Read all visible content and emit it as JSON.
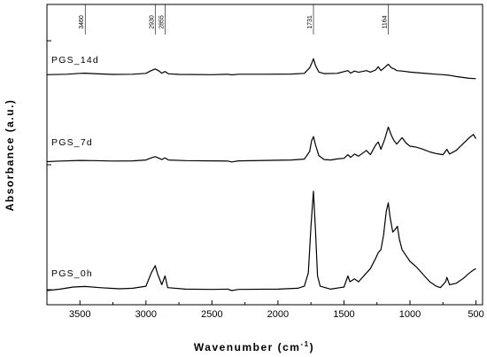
{
  "chart_data": {
    "type": "line",
    "xlabel": "Wavenumber (cm",
    "xlabel_sup": "-1",
    "xlabel_close": ")",
    "ylabel": "Absorbance (a.u.)",
    "xlim": [
      3750,
      450
    ],
    "x_reversed": true,
    "x_ticks": [
      3500,
      3000,
      2500,
      2000,
      1500,
      1000,
      500
    ],
    "y_ticks_shown_without_labels": 3,
    "grid": false,
    "legend": "none",
    "peak_markers": [
      "3460",
      "2930",
      "2855",
      "1731",
      "1164"
    ],
    "series": [
      {
        "name": "PGS_14d",
        "baseline": 0.0,
        "points": [
          [
            3750,
            0.03
          ],
          [
            3600,
            0.05
          ],
          [
            3500,
            0.09
          ],
          [
            3460,
            0.1
          ],
          [
            3400,
            0.08
          ],
          [
            3250,
            0.04
          ],
          [
            3100,
            0.05
          ],
          [
            3000,
            0.09
          ],
          [
            2960,
            0.22
          ],
          [
            2930,
            0.3
          ],
          [
            2900,
            0.2
          ],
          [
            2880,
            0.1
          ],
          [
            2855,
            0.18
          ],
          [
            2830,
            0.07
          ],
          [
            2750,
            0.04
          ],
          [
            2500,
            0.03
          ],
          [
            2380,
            0.05
          ],
          [
            2350,
            0.02
          ],
          [
            2300,
            0.05
          ],
          [
            2100,
            0.05
          ],
          [
            1900,
            0.06
          ],
          [
            1800,
            0.09
          ],
          [
            1760,
            0.35
          ],
          [
            1745,
            0.55
          ],
          [
            1731,
            0.78
          ],
          [
            1715,
            0.45
          ],
          [
            1690,
            0.15
          ],
          [
            1650,
            0.08
          ],
          [
            1550,
            0.09
          ],
          [
            1470,
            0.22
          ],
          [
            1450,
            0.1
          ],
          [
            1420,
            0.2
          ],
          [
            1390,
            0.14
          ],
          [
            1330,
            0.22
          ],
          [
            1300,
            0.15
          ],
          [
            1260,
            0.25
          ],
          [
            1240,
            0.4
          ],
          [
            1220,
            0.22
          ],
          [
            1190,
            0.38
          ],
          [
            1164,
            0.52
          ],
          [
            1140,
            0.35
          ],
          [
            1120,
            0.3
          ],
          [
            1100,
            0.22
          ],
          [
            1060,
            0.2
          ],
          [
            1000,
            0.15
          ],
          [
            900,
            0.1
          ],
          [
            800,
            0.05
          ],
          [
            750,
            0.03
          ],
          [
            700,
            0.0
          ],
          [
            650,
            -0.06
          ],
          [
            600,
            -0.1
          ],
          [
            550,
            -0.14
          ],
          [
            500,
            -0.16
          ]
        ]
      },
      {
        "name": "PGS_7d",
        "baseline": 0.0,
        "points": [
          [
            3750,
            0.02
          ],
          [
            3650,
            0.05
          ],
          [
            3500,
            0.08
          ],
          [
            3400,
            0.07
          ],
          [
            3250,
            0.05
          ],
          [
            3100,
            0.06
          ],
          [
            3000,
            0.1
          ],
          [
            2960,
            0.2
          ],
          [
            2930,
            0.26
          ],
          [
            2900,
            0.18
          ],
          [
            2880,
            0.12
          ],
          [
            2855,
            0.2
          ],
          [
            2830,
            0.1
          ],
          [
            2700,
            0.07
          ],
          [
            2500,
            0.06
          ],
          [
            2380,
            0.05
          ],
          [
            2350,
            0.01
          ],
          [
            2300,
            0.06
          ],
          [
            2100,
            0.08
          ],
          [
            1900,
            0.1
          ],
          [
            1800,
            0.14
          ],
          [
            1760,
            0.5
          ],
          [
            1745,
            1.0
          ],
          [
            1731,
            1.2
          ],
          [
            1715,
            0.8
          ],
          [
            1690,
            0.3
          ],
          [
            1650,
            0.12
          ],
          [
            1600,
            0.1
          ],
          [
            1550,
            0.15
          ],
          [
            1500,
            0.18
          ],
          [
            1470,
            0.35
          ],
          [
            1450,
            0.22
          ],
          [
            1420,
            0.38
          ],
          [
            1390,
            0.28
          ],
          [
            1330,
            0.55
          ],
          [
            1300,
            0.35
          ],
          [
            1260,
            0.8
          ],
          [
            1240,
            0.95
          ],
          [
            1220,
            0.6
          ],
          [
            1190,
            1.1
          ],
          [
            1164,
            1.65
          ],
          [
            1140,
            1.25
          ],
          [
            1120,
            1.0
          ],
          [
            1100,
            0.85
          ],
          [
            1060,
            1.15
          ],
          [
            1030,
            0.9
          ],
          [
            1000,
            0.75
          ],
          [
            950,
            0.7
          ],
          [
            900,
            0.6
          ],
          [
            850,
            0.48
          ],
          [
            800,
            0.4
          ],
          [
            750,
            0.35
          ],
          [
            720,
            0.6
          ],
          [
            700,
            0.38
          ],
          [
            650,
            0.55
          ],
          [
            600,
            0.85
          ],
          [
            550,
            1.15
          ],
          [
            520,
            1.3
          ],
          [
            500,
            1.1
          ]
        ]
      },
      {
        "name": "PGS_0h",
        "baseline": 0.0,
        "points": [
          [
            3750,
            0.0
          ],
          [
            3650,
            0.05
          ],
          [
            3550,
            0.12
          ],
          [
            3460,
            0.14
          ],
          [
            3350,
            0.1
          ],
          [
            3200,
            0.06
          ],
          [
            3100,
            0.08
          ],
          [
            3000,
            0.15
          ],
          [
            2960,
            0.6
          ],
          [
            2930,
            0.85
          ],
          [
            2910,
            0.55
          ],
          [
            2880,
            0.2
          ],
          [
            2855,
            0.5
          ],
          [
            2835,
            0.1
          ],
          [
            2700,
            0.05
          ],
          [
            2500,
            0.04
          ],
          [
            2380,
            0.05
          ],
          [
            2350,
            0.0
          ],
          [
            2300,
            0.04
          ],
          [
            2000,
            0.05
          ],
          [
            1850,
            0.08
          ],
          [
            1800,
            0.15
          ],
          [
            1770,
            0.6
          ],
          [
            1750,
            2.2
          ],
          [
            1731,
            3.4
          ],
          [
            1715,
            2.0
          ],
          [
            1700,
            0.5
          ],
          [
            1680,
            0.15
          ],
          [
            1600,
            0.05
          ],
          [
            1500,
            0.12
          ],
          [
            1470,
            0.5
          ],
          [
            1455,
            0.3
          ],
          [
            1420,
            0.4
          ],
          [
            1390,
            0.3
          ],
          [
            1330,
            0.6
          ],
          [
            1300,
            0.75
          ],
          [
            1260,
            1.1
          ],
          [
            1240,
            1.3
          ],
          [
            1220,
            1.4
          ],
          [
            1200,
            1.9
          ],
          [
            1180,
            2.7
          ],
          [
            1164,
            3.0
          ],
          [
            1150,
            2.5
          ],
          [
            1130,
            2.0
          ],
          [
            1110,
            2.1
          ],
          [
            1095,
            2.2
          ],
          [
            1080,
            1.75
          ],
          [
            1060,
            1.4
          ],
          [
            1030,
            1.2
          ],
          [
            1000,
            1.0
          ],
          [
            950,
            0.8
          ],
          [
            900,
            0.55
          ],
          [
            850,
            0.3
          ],
          [
            800,
            0.15
          ],
          [
            770,
            0.1
          ],
          [
            730,
            0.3
          ],
          [
            720,
            0.45
          ],
          [
            700,
            0.2
          ],
          [
            650,
            0.25
          ],
          [
            600,
            0.4
          ],
          [
            550,
            0.6
          ],
          [
            520,
            0.7
          ],
          [
            500,
            0.75
          ]
        ]
      }
    ]
  }
}
